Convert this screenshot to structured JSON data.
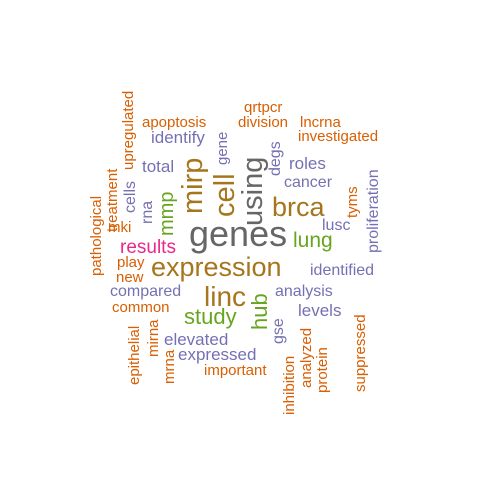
{
  "palette": {
    "orange": "#d95f02",
    "purple": "#7570b3",
    "pink": "#e7298a",
    "green": "#66a61e",
    "olive": "#a6761d",
    "gray": "#666666"
  },
  "words": {
    "genes": "genes",
    "expression": "expression",
    "linc": "linc",
    "brca": "brca",
    "using": "using",
    "cell": "cell",
    "mirp": "mirp",
    "lung": "lung",
    "study": "study",
    "hub": "hub",
    "results": "results",
    "mmp": "mmp",
    "qrtpcr": "qrtpcr",
    "division": "division",
    "lncrna": "lncrna",
    "apoptosis": "apoptosis",
    "investigated": "investigated",
    "identify": "identify",
    "gene": "gene",
    "upregulated": "upregulated",
    "treatment": "treatment",
    "pathological": "pathological",
    "cells": "cells",
    "total": "total",
    "degs": "degs",
    "roles": "roles",
    "cancer": "cancer",
    "tyms": "tyms",
    "proliferation": "proliferation",
    "rna": "rna",
    "mki": "mki",
    "lusc": "lusc",
    "play": "play",
    "new": "new",
    "identified": "identified",
    "compared": "compared",
    "analysis": "analysis",
    "common": "common",
    "levels": "levels",
    "epithelial": "epithelial",
    "mirna": "mirna",
    "mrna": "mrna",
    "elevated": "elevated",
    "expressed": "expressed",
    "gse": "gse",
    "important": "important",
    "inhibition": "inhibition",
    "analyzed": "analyzed",
    "protein": "protein",
    "suppressed": "suppressed"
  }
}
